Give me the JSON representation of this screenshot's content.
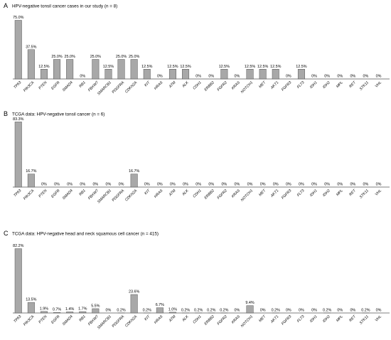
{
  "chart_data": [
    {
      "type": "bar",
      "panel": "A",
      "title": "HPV-negative tonsil cancer cases in our study (n = 8)",
      "categories": [
        "TP53",
        "PIK3CA",
        "PTEN",
        "EGFR",
        "SMAD4",
        "RB1",
        "FBXW7",
        "SMARCB1",
        "PDGFRA",
        "CDKN2A",
        "KIT",
        "HRAS",
        "ATM",
        "ALK",
        "CDH1",
        "ERBB2",
        "FGFR2",
        "KRAS",
        "NOTCH1",
        "MET",
        "AKT1",
        "FGFR3",
        "FLT3",
        "IDH1",
        "IDH2",
        "MPL",
        "RET",
        "STK11",
        "VHL"
      ],
      "values": [
        75.0,
        37.5,
        12.5,
        25.0,
        25.0,
        0,
        25.0,
        12.5,
        25.0,
        25.0,
        12.5,
        0,
        12.5,
        12.5,
        0,
        0,
        12.5,
        0,
        12.5,
        12.5,
        12.5,
        0,
        12.5,
        0,
        0,
        0,
        0,
        0,
        0
      ],
      "labels": [
        "75.0%",
        "37.5%",
        "12.5%",
        "25.0%",
        "25.0%",
        "0%",
        "25.0%",
        "12.5%",
        "25.0%",
        "25.0%",
        "12.5%",
        "0%",
        "12.5%",
        "12.5%",
        "0%",
        "0%",
        "12.5%",
        "0%",
        "12.5%",
        "12.5%",
        "12.5%",
        "0%",
        "12.5%",
        "0%",
        "0%",
        "0%",
        "0%",
        "0%",
        "0%"
      ],
      "xlabel": "",
      "ylabel": "",
      "ylim": [
        0,
        100
      ]
    },
    {
      "type": "bar",
      "panel": "B",
      "title": "TCGA data: HPV-negative tonsil cancer (n = 6)",
      "categories": [
        "TP53",
        "PIK3CA",
        "PTEN",
        "EGFR",
        "SMAD4",
        "RB1",
        "FBXW7",
        "SMARCB1",
        "PDGFRA",
        "CDKN2A",
        "KIT",
        "HRAS",
        "ATM",
        "ALK",
        "CDH1",
        "ERBB2",
        "FGFR2",
        "KRAS",
        "NOTCH1",
        "MET",
        "AKT1",
        "FGFR3",
        "FLT3",
        "IDH1",
        "IDH2",
        "MPL",
        "RET",
        "STK11",
        "VHL"
      ],
      "values": [
        83.3,
        16.7,
        0,
        0,
        0,
        0,
        0,
        0,
        0,
        16.7,
        0,
        0,
        0,
        0,
        0,
        0,
        0,
        0,
        0,
        0,
        0,
        0,
        0,
        0,
        0,
        0,
        0,
        0,
        0
      ],
      "labels": [
        "83.3%",
        "16.7%",
        "0%",
        "0%",
        "0%",
        "0%",
        "0%",
        "0%",
        "0%",
        "16.7%",
        "0%",
        "0%",
        "0%",
        "0%",
        "0%",
        "0%",
        "0%",
        "0%",
        "0%",
        "0%",
        "0%",
        "0%",
        "0%",
        "0%",
        "0%",
        "0%",
        "0%",
        "0%",
        "0%"
      ],
      "xlabel": "",
      "ylabel": "",
      "ylim": [
        0,
        100
      ]
    },
    {
      "type": "bar",
      "panel": "C",
      "title": "TCGA data: HPV-negative head and neck squamous cell cancer (n = 415)",
      "categories": [
        "TP53",
        "PIK3CA",
        "PTEN",
        "EGFR",
        "SMAD4",
        "RB1",
        "FBXW7",
        "SMARCB1",
        "PDGFRA",
        "CDKN2A",
        "KIT",
        "HRAS",
        "ATM",
        "ALK",
        "CDH1",
        "ERBB2",
        "FGFR2",
        "KRAS",
        "NOTCH1",
        "MET",
        "AKT1",
        "FGFR3",
        "FLT3",
        "IDH1",
        "IDH2",
        "MPL",
        "RET",
        "STK11",
        "VHL"
      ],
      "values": [
        82.2,
        13.5,
        1.9,
        0.7,
        1.4,
        1.7,
        5.5,
        0,
        0.2,
        23.6,
        0.2,
        6.7,
        1.0,
        0.2,
        0.2,
        0.2,
        0.2,
        0,
        9.4,
        0,
        0.2,
        0,
        0,
        0,
        0.2,
        0,
        0,
        0.2,
        0
      ],
      "labels": [
        "82.2%",
        "13.5%",
        "1.9%",
        "0.7%",
        "1.4%",
        "1.7%",
        "5.5%",
        "0%",
        "0.2%",
        "23.6%",
        "0.2%",
        "6.7%",
        "1.0%",
        "0.2%",
        "0.2%",
        "0.2%",
        "0.2%",
        "0%",
        "9.4%",
        "0%",
        "0.2%",
        "0%",
        "0%",
        "0%",
        "0.2%",
        "0%",
        "0%",
        "0.2%",
        "0%"
      ],
      "xlabel": "",
      "ylabel": "",
      "ylim": [
        0,
        100
      ]
    }
  ],
  "colors": {
    "bar_fill": "#a8a8a8",
    "bar_stroke": "#555555",
    "axis": "#000000"
  }
}
